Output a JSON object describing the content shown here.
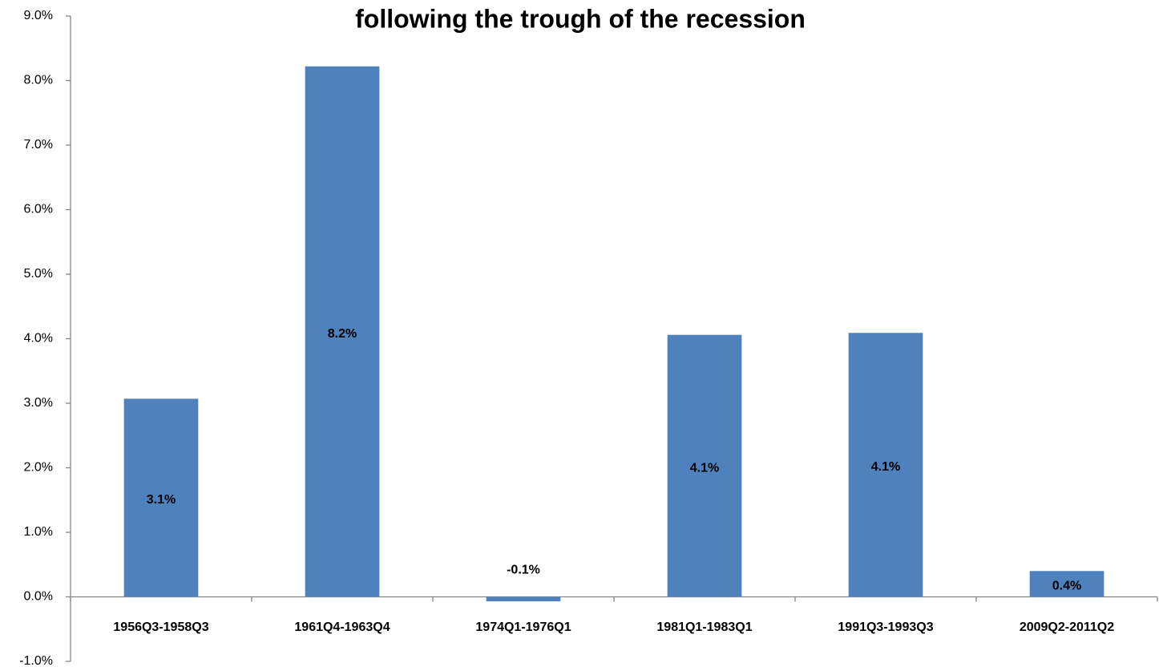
{
  "chart_data": {
    "type": "bar",
    "title": "following the trough of the recession",
    "categories": [
      "1956Q3-1958Q3",
      "1961Q4-1963Q4",
      "1974Q1-1976Q1",
      "1981Q1-1983Q1",
      "1991Q3-1993Q3",
      "2009Q2-2011Q2"
    ],
    "values": [
      3.07,
      8.22,
      -0.07,
      4.06,
      4.09,
      0.4
    ],
    "value_labels": [
      "3.1%",
      "8.2%",
      "-0.1%",
      "4.1%",
      "4.1%",
      "0.4%"
    ],
    "color": "#4f81bd",
    "ylim": [
      -1,
      9
    ],
    "yticks": [
      {
        "value": -1,
        "label": "-1.0%"
      },
      {
        "value": 0,
        "label": "0.0%"
      },
      {
        "value": 1,
        "label": "1.0%"
      },
      {
        "value": 2,
        "label": "2.0%"
      },
      {
        "value": 3,
        "label": "3.0%"
      },
      {
        "value": 4,
        "label": "4.0%"
      },
      {
        "value": 5,
        "label": "5.0%"
      },
      {
        "value": 6,
        "label": "6.0%"
      },
      {
        "value": 7,
        "label": "7.0%"
      },
      {
        "value": 8,
        "label": "8.0%"
      },
      {
        "value": 9,
        "label": "9.0%"
      }
    ],
    "grid": false
  }
}
